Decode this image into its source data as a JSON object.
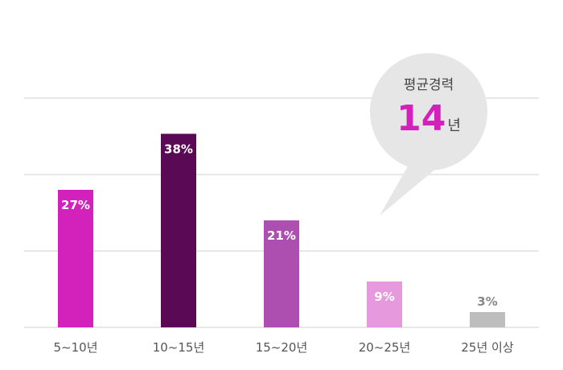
{
  "chart_data": {
    "type": "bar",
    "categories": [
      "5~10년",
      "10~15년",
      "15~20년",
      "20~25년",
      "25년 이상"
    ],
    "values": [
      27,
      38,
      21,
      9,
      3
    ],
    "value_labels": [
      "27%",
      "38%",
      "21%",
      "9%",
      "3%"
    ],
    "ylim": [
      0,
      45
    ],
    "grid": true,
    "colors": [
      "#d322bb",
      "#5a0a55",
      "#ad4fb0",
      "#e699dc",
      "#bdbdbd"
    ],
    "label_colors": [
      "#ffffff",
      "#ffffff",
      "#ffffff",
      "#ffffff",
      "#888888"
    ],
    "annotation": {
      "title": "평균경력",
      "value": "14",
      "unit": "년",
      "value_color": "#d322bb",
      "bubble_color": "#e6e6e6"
    }
  }
}
